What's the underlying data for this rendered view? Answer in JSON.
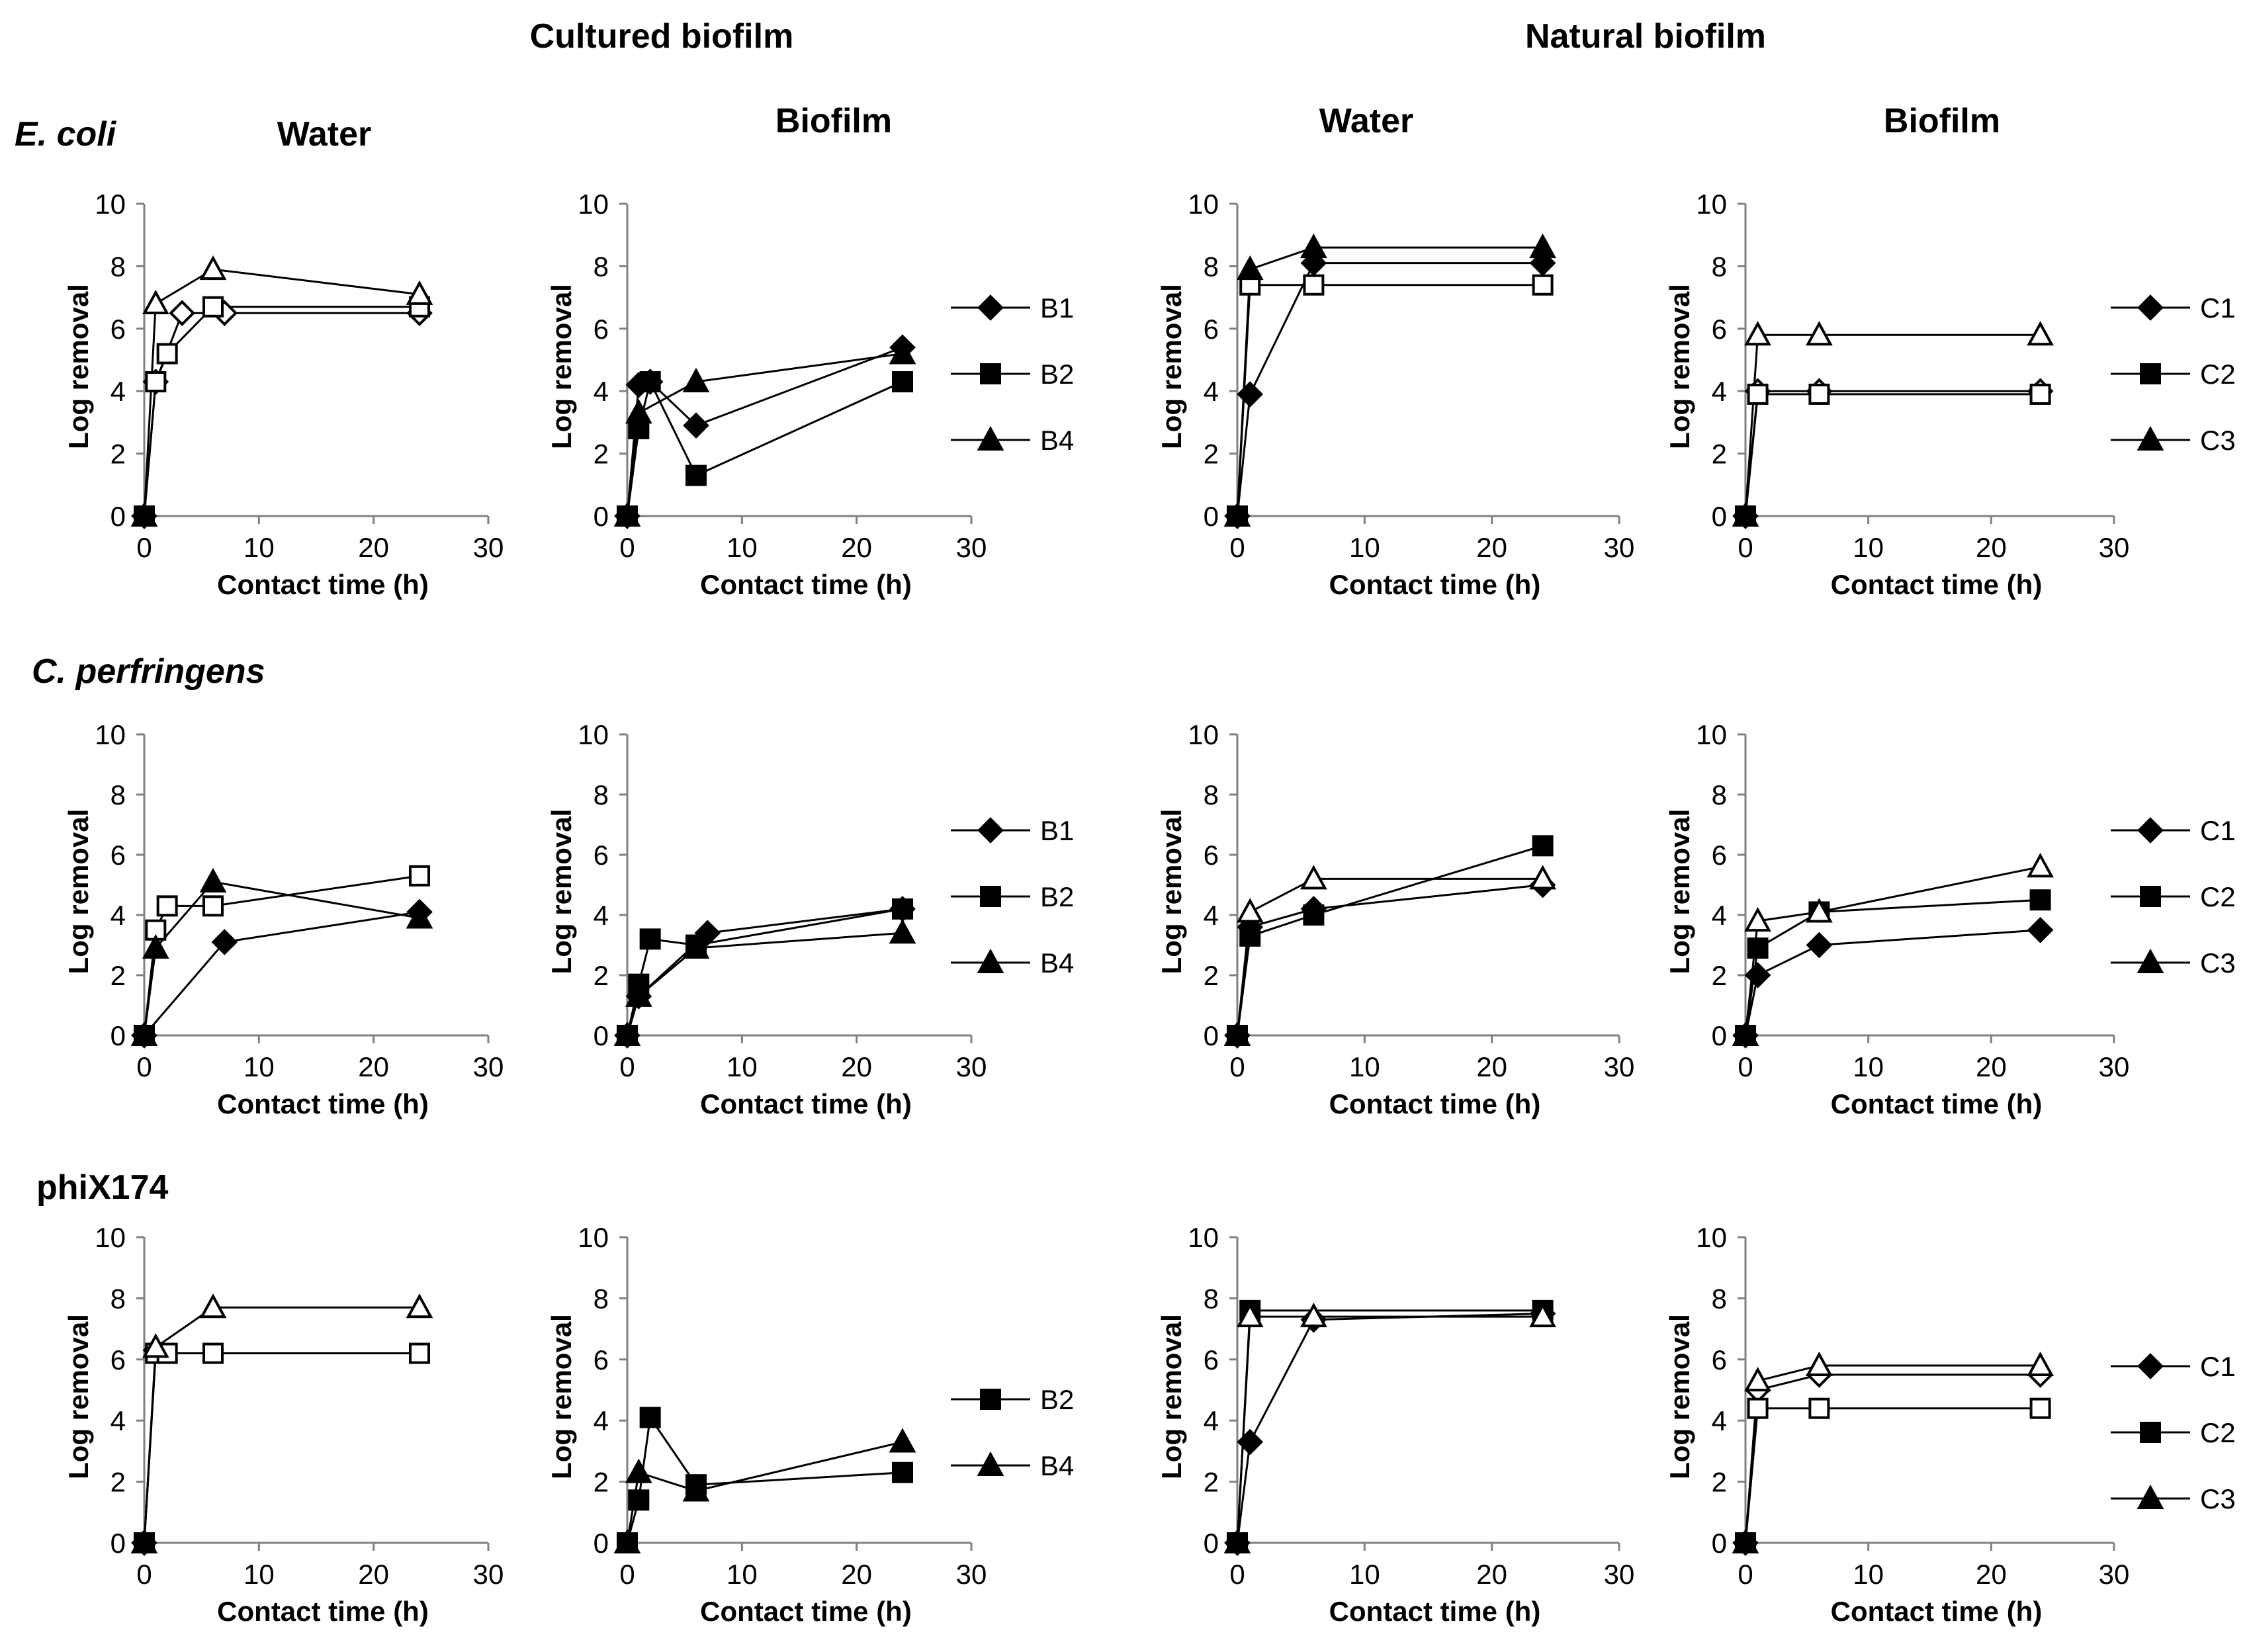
{
  "figure": {
    "group_headers": [
      "Cultured biofilm",
      "Natural biofilm"
    ],
    "column_headers": [
      "Water",
      "Biofilm",
      "Water",
      "Biofilm"
    ],
    "row_labels": [
      {
        "text": "E. coli",
        "italic": true
      },
      {
        "text": "C. perfringens",
        "italic": true
      },
      {
        "text": "phiX174",
        "italic": false
      }
    ],
    "xlabel": "Contact time (h)",
    "ylabel": "Log removal",
    "xticks": [
      0,
      10,
      20,
      30
    ],
    "yticks": [
      0,
      2,
      4,
      6,
      8,
      10
    ],
    "marker_style_note": "filled or open as drawn"
  },
  "chart_data": [
    {
      "type": "line",
      "row": 0,
      "col": 0,
      "title": "Water",
      "xlabel": "Contact time (h)",
      "ylabel": "Log removal",
      "xlim": [
        0,
        30
      ],
      "ylim": [
        0,
        10
      ],
      "legend": [],
      "series": [
        {
          "name": "Diamond series",
          "marker": "diamond",
          "filled": false,
          "x": [
            0,
            1,
            3.3,
            7,
            24
          ],
          "y": [
            0,
            4.3,
            6.5,
            6.5,
            6.5
          ]
        },
        {
          "name": "Square series",
          "marker": "square",
          "filled": false,
          "x": [
            0,
            1,
            2,
            6,
            24
          ],
          "y": [
            0,
            4.3,
            5.2,
            6.7,
            6.7
          ]
        },
        {
          "name": "Triangle series",
          "marker": "triangle",
          "filled": false,
          "x": [
            0,
            1,
            6,
            24
          ],
          "y": [
            0,
            6.8,
            7.9,
            7.1
          ]
        }
      ]
    },
    {
      "type": "line",
      "row": 0,
      "col": 1,
      "title": "Biofilm",
      "xlabel": "Contact time (h)",
      "ylabel": "Log removal",
      "xlim": [
        0,
        30
      ],
      "ylim": [
        0,
        10
      ],
      "legend": [
        "B1",
        "B2",
        "B4"
      ],
      "series": [
        {
          "name": "B1",
          "marker": "diamond",
          "filled": true,
          "x": [
            0,
            1,
            2,
            6,
            24
          ],
          "y": [
            0,
            4.2,
            4.3,
            2.9,
            5.4
          ]
        },
        {
          "name": "B2",
          "marker": "square",
          "filled": true,
          "x": [
            0,
            1,
            2,
            6,
            24
          ],
          "y": [
            0,
            2.8,
            4.3,
            1.3,
            4.3
          ]
        },
        {
          "name": "B4",
          "marker": "triangle",
          "filled": true,
          "x": [
            0,
            1,
            6,
            24
          ],
          "y": [
            0,
            3.3,
            4.3,
            5.2
          ]
        }
      ]
    },
    {
      "type": "line",
      "row": 0,
      "col": 2,
      "title": "Water",
      "xlabel": "Contact time (h)",
      "ylabel": "Log removal",
      "xlim": [
        0,
        30
      ],
      "ylim": [
        0,
        10
      ],
      "legend": [],
      "series": [
        {
          "name": "Diamond series",
          "marker": "diamond",
          "filled": true,
          "x": [
            0,
            1,
            6,
            24
          ],
          "y": [
            0,
            3.9,
            8.1,
            8.1
          ]
        },
        {
          "name": "Square series",
          "marker": "square",
          "filled": false,
          "x": [
            0,
            1,
            6,
            24
          ],
          "y": [
            0,
            7.4,
            7.4,
            7.4
          ]
        },
        {
          "name": "Triangle series",
          "marker": "triangle",
          "filled": true,
          "x": [
            0,
            1,
            6,
            24
          ],
          "y": [
            0,
            7.9,
            8.6,
            8.6
          ]
        }
      ]
    },
    {
      "type": "line",
      "row": 0,
      "col": 3,
      "title": "Biofilm",
      "xlabel": "Contact time (h)",
      "ylabel": "Log removal",
      "xlim": [
        0,
        30
      ],
      "ylim": [
        0,
        10
      ],
      "legend": [
        "C1",
        "C2",
        "C3"
      ],
      "series": [
        {
          "name": "C1",
          "marker": "diamond",
          "filled": false,
          "x": [
            0,
            1,
            6,
            24
          ],
          "y": [
            0,
            4.0,
            4.0,
            4.0
          ]
        },
        {
          "name": "C2",
          "marker": "square",
          "filled": false,
          "x": [
            0,
            1,
            6,
            24
          ],
          "y": [
            0,
            3.9,
            3.9,
            3.9
          ]
        },
        {
          "name": "C3",
          "marker": "triangle",
          "filled": false,
          "x": [
            0,
            1,
            6,
            24
          ],
          "y": [
            0,
            5.8,
            5.8,
            5.8
          ]
        }
      ]
    },
    {
      "type": "line",
      "row": 1,
      "col": 0,
      "title": "Water",
      "xlabel": "Contact time (h)",
      "ylabel": "Log removal",
      "xlim": [
        0,
        30
      ],
      "ylim": [
        0,
        10
      ],
      "legend": [],
      "series": [
        {
          "name": "Diamond series",
          "marker": "diamond",
          "filled": true,
          "x": [
            0,
            7,
            24
          ],
          "y": [
            0,
            3.1,
            4.1
          ]
        },
        {
          "name": "Square series",
          "marker": "square",
          "filled": false,
          "x": [
            0,
            1,
            2,
            6,
            24
          ],
          "y": [
            0,
            3.5,
            4.3,
            4.3,
            5.3
          ]
        },
        {
          "name": "Triangle series",
          "marker": "triangle",
          "filled": true,
          "x": [
            0,
            1,
            6,
            24
          ],
          "y": [
            0,
            2.9,
            5.1,
            3.9
          ]
        }
      ]
    },
    {
      "type": "line",
      "row": 1,
      "col": 1,
      "title": "Biofilm",
      "xlabel": "Contact time (h)",
      "ylabel": "Log removal",
      "xlim": [
        0,
        30
      ],
      "ylim": [
        0,
        10
      ],
      "legend": [
        "B1",
        "B2",
        "B4"
      ],
      "series": [
        {
          "name": "B1",
          "marker": "diamond",
          "filled": true,
          "x": [
            0,
            1,
            7,
            24
          ],
          "y": [
            0,
            1.3,
            3.4,
            4.2
          ]
        },
        {
          "name": "B2",
          "marker": "square",
          "filled": true,
          "x": [
            0,
            1,
            2,
            6,
            24
          ],
          "y": [
            0,
            1.7,
            3.2,
            3.0,
            4.2
          ]
        },
        {
          "name": "B4",
          "marker": "triangle",
          "filled": true,
          "x": [
            0,
            1,
            6,
            24
          ],
          "y": [
            0,
            1.3,
            2.9,
            3.4
          ]
        }
      ]
    },
    {
      "type": "line",
      "row": 1,
      "col": 2,
      "title": "Water",
      "xlabel": "Contact time (h)",
      "ylabel": "Log removal",
      "xlim": [
        0,
        30
      ],
      "ylim": [
        0,
        10
      ],
      "legend": [],
      "series": [
        {
          "name": "Diamond series",
          "marker": "diamond",
          "filled": true,
          "x": [
            0,
            1,
            6,
            24
          ],
          "y": [
            0,
            3.6,
            4.2,
            5.0
          ]
        },
        {
          "name": "Square series",
          "marker": "square",
          "filled": true,
          "x": [
            0,
            1,
            6,
            24
          ],
          "y": [
            0,
            3.3,
            4.0,
            6.3
          ]
        },
        {
          "name": "Triangle series",
          "marker": "triangle",
          "filled": false,
          "x": [
            0,
            1,
            6,
            24
          ],
          "y": [
            0,
            4.1,
            5.2,
            5.2
          ]
        }
      ]
    },
    {
      "type": "line",
      "row": 1,
      "col": 3,
      "title": "Biofilm",
      "xlabel": "Contact time (h)",
      "ylabel": "Log removal",
      "xlim": [
        0,
        30
      ],
      "ylim": [
        0,
        10
      ],
      "legend": [
        "C1",
        "C2",
        "C3"
      ],
      "series": [
        {
          "name": "C1",
          "marker": "diamond",
          "filled": true,
          "x": [
            0,
            1,
            6,
            24
          ],
          "y": [
            0,
            2.0,
            3.0,
            3.5
          ]
        },
        {
          "name": "C2",
          "marker": "square",
          "filled": true,
          "x": [
            0,
            1,
            6,
            24
          ],
          "y": [
            0,
            2.9,
            4.1,
            4.5
          ]
        },
        {
          "name": "C3",
          "marker": "triangle",
          "filled": false,
          "x": [
            0,
            1,
            6,
            24
          ],
          "y": [
            0,
            3.8,
            4.1,
            5.6
          ]
        }
      ]
    },
    {
      "type": "line",
      "row": 2,
      "col": 0,
      "title": "Water",
      "xlabel": "Contact time (h)",
      "ylabel": "Log removal",
      "xlim": [
        0,
        30
      ],
      "ylim": [
        0,
        10
      ],
      "legend": [],
      "series": [
        {
          "name": "Diamond series",
          "marker": "diamond",
          "filled": true,
          "x": [
            0,
            1
          ],
          "y": [
            0,
            6.3
          ]
        },
        {
          "name": "Square series",
          "marker": "square",
          "filled": false,
          "x": [
            0,
            1,
            2,
            6,
            24
          ],
          "y": [
            0,
            6.2,
            6.2,
            6.2,
            6.2
          ]
        },
        {
          "name": "Triangle series",
          "marker": "triangle",
          "filled": false,
          "x": [
            0,
            1,
            6,
            24
          ],
          "y": [
            0,
            6.4,
            7.7,
            7.7
          ]
        }
      ]
    },
    {
      "type": "line",
      "row": 2,
      "col": 1,
      "title": "Biofilm",
      "xlabel": "Contact time (h)",
      "ylabel": "Log removal",
      "xlim": [
        0,
        30
      ],
      "ylim": [
        0,
        10
      ],
      "legend": [
        "B2",
        "B4"
      ],
      "series": [
        {
          "name": "B2",
          "marker": "square",
          "filled": true,
          "x": [
            0,
            1,
            2,
            6,
            24
          ],
          "y": [
            0,
            1.4,
            4.1,
            1.9,
            2.3
          ]
        },
        {
          "name": "B4",
          "marker": "triangle",
          "filled": true,
          "x": [
            0,
            1,
            6,
            24
          ],
          "y": [
            0,
            2.3,
            1.7,
            3.3
          ]
        }
      ]
    },
    {
      "type": "line",
      "row": 2,
      "col": 2,
      "title": "Water",
      "xlabel": "Contact time (h)",
      "ylabel": "Log removal",
      "xlim": [
        0,
        30
      ],
      "ylim": [
        0,
        10
      ],
      "legend": [],
      "series": [
        {
          "name": "Diamond series",
          "marker": "diamond",
          "filled": true,
          "x": [
            0,
            1,
            6,
            24
          ],
          "y": [
            0,
            3.3,
            7.3,
            7.5
          ]
        },
        {
          "name": "Square series",
          "marker": "square",
          "filled": true,
          "x": [
            0,
            1,
            24
          ],
          "y": [
            0,
            7.6,
            7.6
          ]
        },
        {
          "name": "Triangle series",
          "marker": "triangle",
          "filled": false,
          "x": [
            0,
            1,
            6,
            24
          ],
          "y": [
            0,
            7.4,
            7.4,
            7.4
          ]
        }
      ]
    },
    {
      "type": "line",
      "row": 2,
      "col": 3,
      "title": "Biofilm",
      "xlabel": "Contact time (h)",
      "ylabel": "Log removal",
      "xlim": [
        0,
        30
      ],
      "ylim": [
        0,
        10
      ],
      "legend": [
        "C1",
        "C2",
        "C3"
      ],
      "series": [
        {
          "name": "C1",
          "marker": "diamond",
          "filled": false,
          "x": [
            0,
            1,
            6,
            24
          ],
          "y": [
            0,
            5.0,
            5.5,
            5.5
          ]
        },
        {
          "name": "C2",
          "marker": "square",
          "filled": false,
          "x": [
            0,
            1,
            6,
            24
          ],
          "y": [
            0,
            4.4,
            4.4,
            4.4
          ]
        },
        {
          "name": "C3",
          "marker": "triangle",
          "filled": false,
          "x": [
            0,
            1,
            6,
            24
          ],
          "y": [
            0,
            5.3,
            5.8,
            5.8
          ]
        }
      ]
    }
  ]
}
